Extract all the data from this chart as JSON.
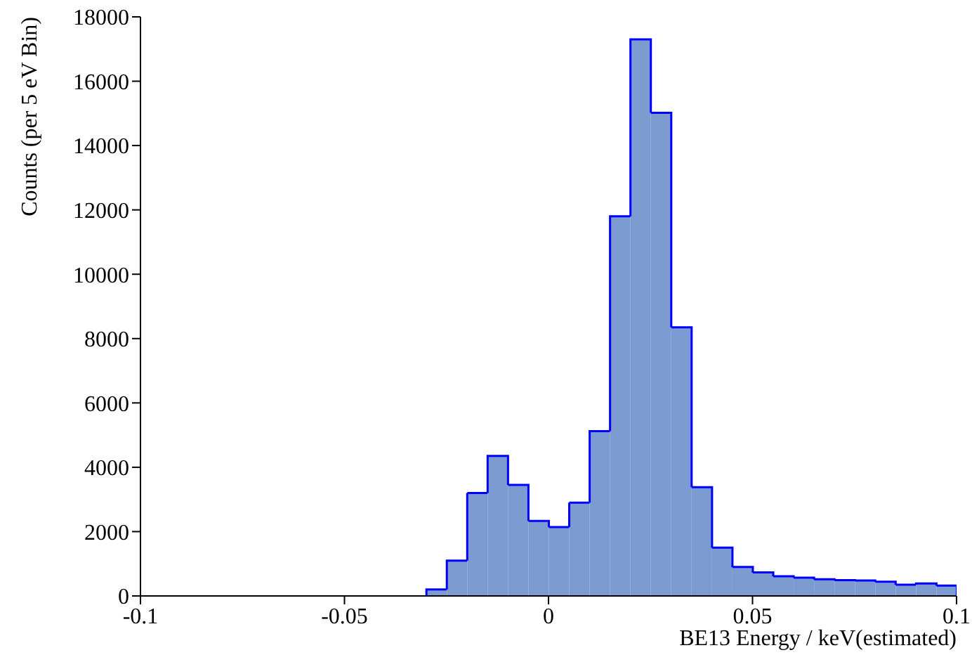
{
  "chart_data": {
    "type": "histogram",
    "xlabel": "BE13 Energy / keV(estimated)",
    "ylabel": "Counts (per 5 eV Bin)",
    "bins": [
      -0.1,
      -0.095,
      -0.09,
      -0.085,
      -0.08,
      -0.075,
      -0.07,
      -0.065,
      -0.06,
      -0.055,
      -0.05,
      -0.045,
      -0.04,
      -0.035,
      -0.03,
      -0.025,
      -0.02,
      -0.015,
      -0.01,
      -0.005,
      0,
      0.005,
      0.01,
      0.015,
      0.02,
      0.025,
      0.03,
      0.035,
      0.04,
      0.045,
      0.05,
      0.055,
      0.06,
      0.065,
      0.07,
      0.075,
      0.08,
      0.085,
      0.09,
      0.095,
      0.1
    ],
    "values": [
      0,
      0,
      0,
      0,
      0,
      0,
      0,
      0,
      0,
      0,
      0,
      0,
      0,
      0,
      200,
      1100,
      3200,
      4350,
      3450,
      2330,
      2140,
      2900,
      5120,
      11800,
      17300,
      15020,
      8350,
      3380,
      1500,
      900,
      730,
      610,
      570,
      520,
      490,
      480,
      440,
      350,
      390,
      320
    ],
    "color": "#7b9bd1",
    "xlim": [
      -0.1,
      0.1
    ],
    "xticks": [
      -0.1,
      -0.05,
      0,
      0.05,
      0.1
    ],
    "ylim": [
      0,
      18000
    ],
    "yticks": [
      0,
      2000,
      4000,
      6000,
      8000,
      10000,
      12000,
      14000,
      16000,
      18000
    ],
    "grid": false,
    "legend": false
  }
}
